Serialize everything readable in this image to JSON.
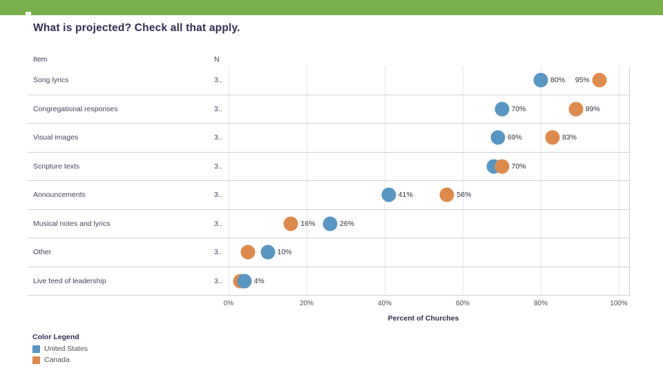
{
  "slide": {
    "title": "What is projected? Check all that apply.",
    "accent_color": "#77AF4B"
  },
  "table": {
    "item_header": "Item",
    "n_header": "N"
  },
  "chart_data": {
    "type": "scatter",
    "orientation": "horizontal",
    "title": "What is projected? Check all that apply.",
    "categories": [
      "Song lyrics",
      "Congregational responses",
      "Visual images",
      "Scripture texts",
      "Announcements",
      "Musical notes and lyrics",
      "Other",
      "Live feed of leadership"
    ],
    "n_column": [
      "3..",
      "3..",
      "3..",
      "3..",
      "3..",
      "3..",
      "3..",
      "3.."
    ],
    "series": [
      {
        "key": "united-states",
        "name": "United States",
        "color": "#5996C1",
        "values": [
          80,
          70,
          69,
          68,
          41,
          26,
          10,
          4
        ]
      },
      {
        "key": "canada",
        "name": "Canada",
        "color": "#DE8A4D",
        "values": [
          95,
          89,
          83,
          70,
          56,
          16,
          5,
          3
        ]
      }
    ],
    "visible_point_labels": {
      "united-states": [
        "80%",
        "70%",
        "69%",
        "",
        "41%",
        "26%",
        "10%",
        "4%"
      ],
      "canada": [
        "95%",
        "89%",
        "83%",
        "70%",
        "56%",
        "16%",
        "",
        ""
      ]
    },
    "xlabel": "Percent of Churches",
    "x_ticks": [
      "0%",
      "20%",
      "40%",
      "60%",
      "80%",
      "100%"
    ],
    "xlim": [
      0,
      100
    ],
    "grid": "vertical",
    "legend_title": "Color Legend",
    "legend_position": "bottom-left"
  },
  "rows": [
    {
      "item": "Song lyrics",
      "n": "3..",
      "points": [
        {
          "s": 0,
          "v": 80,
          "label": "80%",
          "side": "right"
        },
        {
          "s": 1,
          "v": 95,
          "label": "95%",
          "side": "left"
        }
      ]
    },
    {
      "item": "Congregational responses",
      "n": "3..",
      "points": [
        {
          "s": 0,
          "v": 70,
          "label": "70%",
          "side": "right"
        },
        {
          "s": 1,
          "v": 89,
          "label": "89%",
          "side": "right"
        }
      ]
    },
    {
      "item": "Visual images",
      "n": "3..",
      "points": [
        {
          "s": 0,
          "v": 69,
          "label": "69%",
          "side": "right"
        },
        {
          "s": 1,
          "v": 83,
          "label": "83%",
          "side": "right"
        }
      ]
    },
    {
      "item": "Scripture texts",
      "n": "3..",
      "points": [
        {
          "s": 0,
          "v": 68,
          "label": "",
          "side": "right"
        },
        {
          "s": 1,
          "v": 70,
          "label": "70%",
          "side": "right"
        }
      ]
    },
    {
      "item": "Announcements",
      "n": "3..",
      "points": [
        {
          "s": 0,
          "v": 41,
          "label": "41%",
          "side": "right"
        },
        {
          "s": 1,
          "v": 56,
          "label": "56%",
          "side": "right"
        }
      ]
    },
    {
      "item": "Musical notes and lyrics",
      "n": "3..",
      "points": [
        {
          "s": 1,
          "v": 16,
          "label": "16%",
          "side": "right"
        },
        {
          "s": 0,
          "v": 26,
          "label": "26%",
          "side": "right"
        }
      ]
    },
    {
      "item": "Other",
      "n": "3..",
      "points": [
        {
          "s": 1,
          "v": 5,
          "label": "",
          "side": "right"
        },
        {
          "s": 0,
          "v": 10,
          "label": "10%",
          "side": "right"
        }
      ]
    },
    {
      "item": "Live feed of leadership",
      "n": "3..",
      "points": [
        {
          "s": 1,
          "v": 3,
          "label": "",
          "side": "right"
        },
        {
          "s": 0,
          "v": 4,
          "label": "4%",
          "side": "right"
        }
      ]
    }
  ]
}
